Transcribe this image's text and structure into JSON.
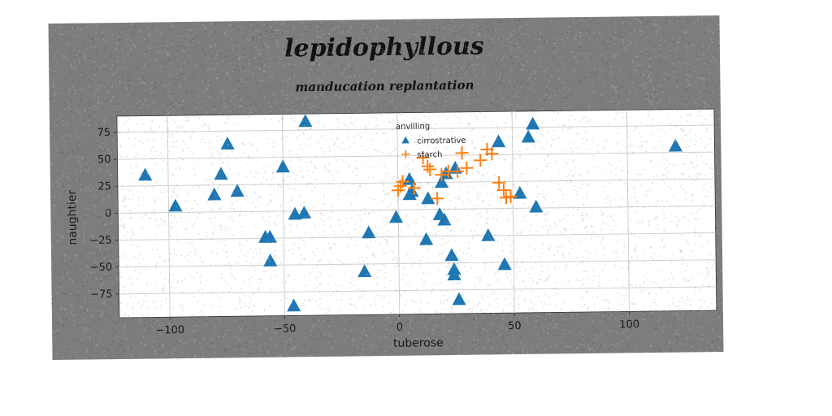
{
  "chart_data": {
    "type": "scatter",
    "title": "lepidophyllous",
    "subtitle": "manducation replantation",
    "xlabel": "tuberose",
    "ylabel": "naughtier",
    "xlim": [
      -122,
      138
    ],
    "ylim": [
      -97,
      90
    ],
    "xticks": [
      -100,
      -50,
      0,
      50,
      100
    ],
    "xtick_labels": [
      "−100",
      "−50",
      "0",
      "50",
      "100"
    ],
    "yticks": [
      75,
      50,
      25,
      0,
      -25,
      -50,
      -75
    ],
    "ytick_labels": [
      "75",
      "50",
      "25",
      "0",
      "−25",
      "−50",
      "−75"
    ],
    "grid": true,
    "legend": {
      "title": "anvilling",
      "placement": "top-center"
    },
    "colors": {
      "cirrostrative": "#1f77b4",
      "starch": "#ff7f0e"
    },
    "series": [
      {
        "name": "cirrostrative",
        "marker": "triangle",
        "points": [
          [
            -110,
            35
          ],
          [
            -97,
            6
          ],
          [
            -80,
            16
          ],
          [
            -77,
            35
          ],
          [
            -74,
            63
          ],
          [
            -70,
            19
          ],
          [
            -58,
            -24
          ],
          [
            -56,
            -24
          ],
          [
            -56,
            -46
          ],
          [
            -50,
            41
          ],
          [
            -45,
            -3
          ],
          [
            -41,
            -2
          ],
          [
            -40,
            83
          ],
          [
            -46,
            -88
          ],
          [
            -13,
            -21
          ],
          [
            -15,
            -57
          ],
          [
            -1,
            -7
          ],
          [
            5,
            28
          ],
          [
            5,
            14
          ],
          [
            6,
            17
          ],
          [
            12,
            -28
          ],
          [
            13,
            10
          ],
          [
            18,
            -5
          ],
          [
            19,
            25
          ],
          [
            20,
            -10
          ],
          [
            21,
            33
          ],
          [
            23,
            -43
          ],
          [
            24,
            -56
          ],
          [
            24,
            -61
          ],
          [
            25,
            38
          ],
          [
            26,
            -84
          ],
          [
            39,
            -25
          ],
          [
            44,
            62
          ],
          [
            46,
            -52
          ],
          [
            53,
            14
          ],
          [
            57,
            66
          ],
          [
            59,
            78
          ],
          [
            60,
            1
          ],
          [
            121,
            56
          ]
        ]
      },
      {
        "name": "starch",
        "marker": "plus",
        "points": [
          [
            0,
            18
          ],
          [
            1,
            22
          ],
          [
            2,
            26
          ],
          [
            7,
            20
          ],
          [
            11,
            48
          ],
          [
            13,
            40
          ],
          [
            14,
            37
          ],
          [
            17,
            10
          ],
          [
            19,
            32
          ],
          [
            22,
            35
          ],
          [
            26,
            35
          ],
          [
            28,
            52
          ],
          [
            30,
            38
          ],
          [
            36,
            45
          ],
          [
            39,
            55
          ],
          [
            41,
            51
          ],
          [
            44,
            24
          ],
          [
            46,
            17
          ],
          [
            47,
            10
          ],
          [
            49,
            11
          ]
        ]
      }
    ]
  }
}
